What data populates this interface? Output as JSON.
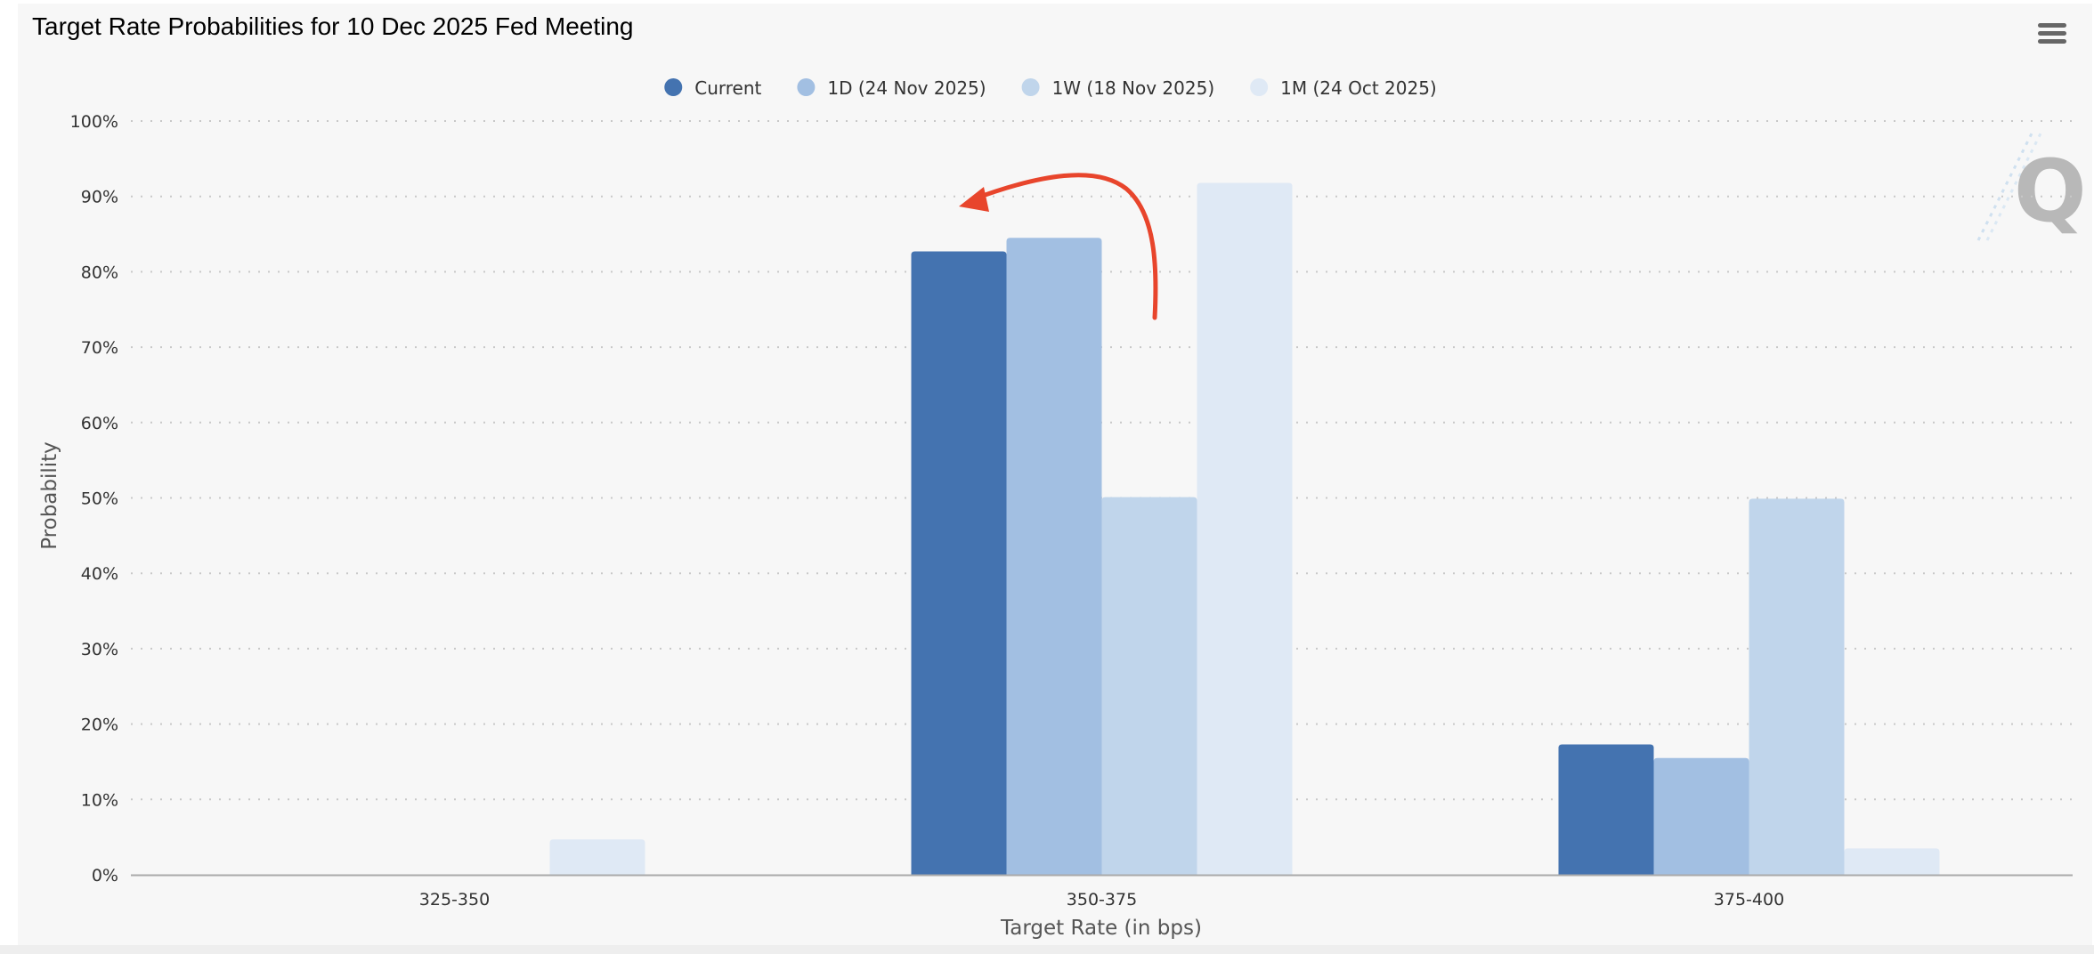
{
  "chart_data": {
    "type": "bar",
    "title": "Target Rate Probabilities for 10 Dec 2025 Fed Meeting",
    "xlabel": "Target Rate (in bps)",
    "ylabel": "Probability",
    "categories": [
      "325-350",
      "350-375",
      "375-400"
    ],
    "ylim": [
      0,
      100
    ],
    "yticks": [
      "0%",
      "10%",
      "20%",
      "30%",
      "40%",
      "50%",
      "60%",
      "70%",
      "80%",
      "90%",
      "100%"
    ],
    "grid": true,
    "legend_position": "top-center",
    "series": [
      {
        "name": "Current",
        "color": "#4473b0",
        "values": [
          0,
          82.7,
          17.3
        ]
      },
      {
        "name": "1D (24 Nov 2025)",
        "color": "#a2bfe2",
        "values": [
          0,
          84.5,
          15.5
        ]
      },
      {
        "name": "1W (18 Nov 2025)",
        "color": "#c0d5eb",
        "values": [
          0,
          50.1,
          49.9
        ]
      },
      {
        "name": "1M (24 Oct 2025)",
        "color": "#dfe9f5",
        "values": [
          4.7,
          91.8,
          3.5
        ]
      }
    ],
    "annotation": {
      "type": "arrow",
      "color": "#e8452c"
    },
    "watermark": "Q"
  }
}
